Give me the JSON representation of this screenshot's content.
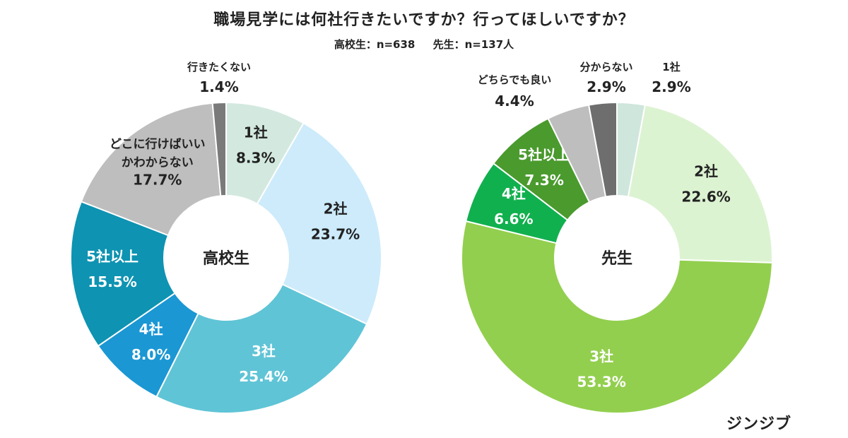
{
  "title": "職場見学には何社行きたいですか？行ってほしいですか？",
  "subtitle": {
    "students": "高校生：n=638",
    "teachers": "先生：n=137人"
  },
  "brand": "ジンジブ",
  "chart_data": [
    {
      "type": "pie",
      "center_label": "高校生",
      "slices": [
        {
          "label": "1社",
          "value": 8.3,
          "value_text": "8.3%",
          "color": "#d3e9df",
          "text_color": "#222222"
        },
        {
          "label": "2社",
          "value": 23.7,
          "value_text": "23.7%",
          "color": "#cdebfb",
          "text_color": "#222222"
        },
        {
          "label": "3社",
          "value": 25.4,
          "value_text": "25.4%",
          "color": "#5fc4d6",
          "text_color": "#ffffff"
        },
        {
          "label": "4社",
          "value": 8.0,
          "value_text": "8.0%",
          "color": "#1b97d4",
          "text_color": "#ffffff"
        },
        {
          "label": "5社以上",
          "value": 15.5,
          "value_text": "15.5%",
          "color": "#0e93b2",
          "text_color": "#ffffff"
        },
        {
          "label": "どこに行けばいい\nかわからない",
          "value": 17.7,
          "value_text": "17.7%",
          "color": "#bebebe",
          "text_color": "#222222"
        },
        {
          "label": "行きたくない",
          "value": 1.4,
          "value_text": "1.4%",
          "color": "#7a7a7a",
          "text_color": "#222222",
          "outside": true
        }
      ]
    },
    {
      "type": "pie",
      "center_label": "先生",
      "slices": [
        {
          "label": "1社",
          "value": 2.9,
          "value_text": "2.9%",
          "color": "#cfe6dd",
          "text_color": "#222222",
          "outside": true
        },
        {
          "label": "2社",
          "value": 22.6,
          "value_text": "22.6%",
          "color": "#dcf3d2",
          "text_color": "#222222"
        },
        {
          "label": "3社",
          "value": 53.3,
          "value_text": "53.3%",
          "color": "#92cf4e",
          "text_color": "#ffffff"
        },
        {
          "label": "4社",
          "value": 6.6,
          "value_text": "6.6%",
          "color": "#11b04e",
          "text_color": "#ffffff"
        },
        {
          "label": "5社以上",
          "value": 7.3,
          "value_text": "7.3%",
          "color": "#4a9a2e",
          "text_color": "#ffffff"
        },
        {
          "label": "どちらでも良い",
          "value": 4.4,
          "value_text": "4.4%",
          "color": "#bebebe",
          "text_color": "#222222",
          "outside": true
        },
        {
          "label": "分からない",
          "value": 2.9,
          "value_text": "2.9%",
          "color": "#6e6e6e",
          "text_color": "#222222",
          "outside": true
        }
      ]
    }
  ]
}
